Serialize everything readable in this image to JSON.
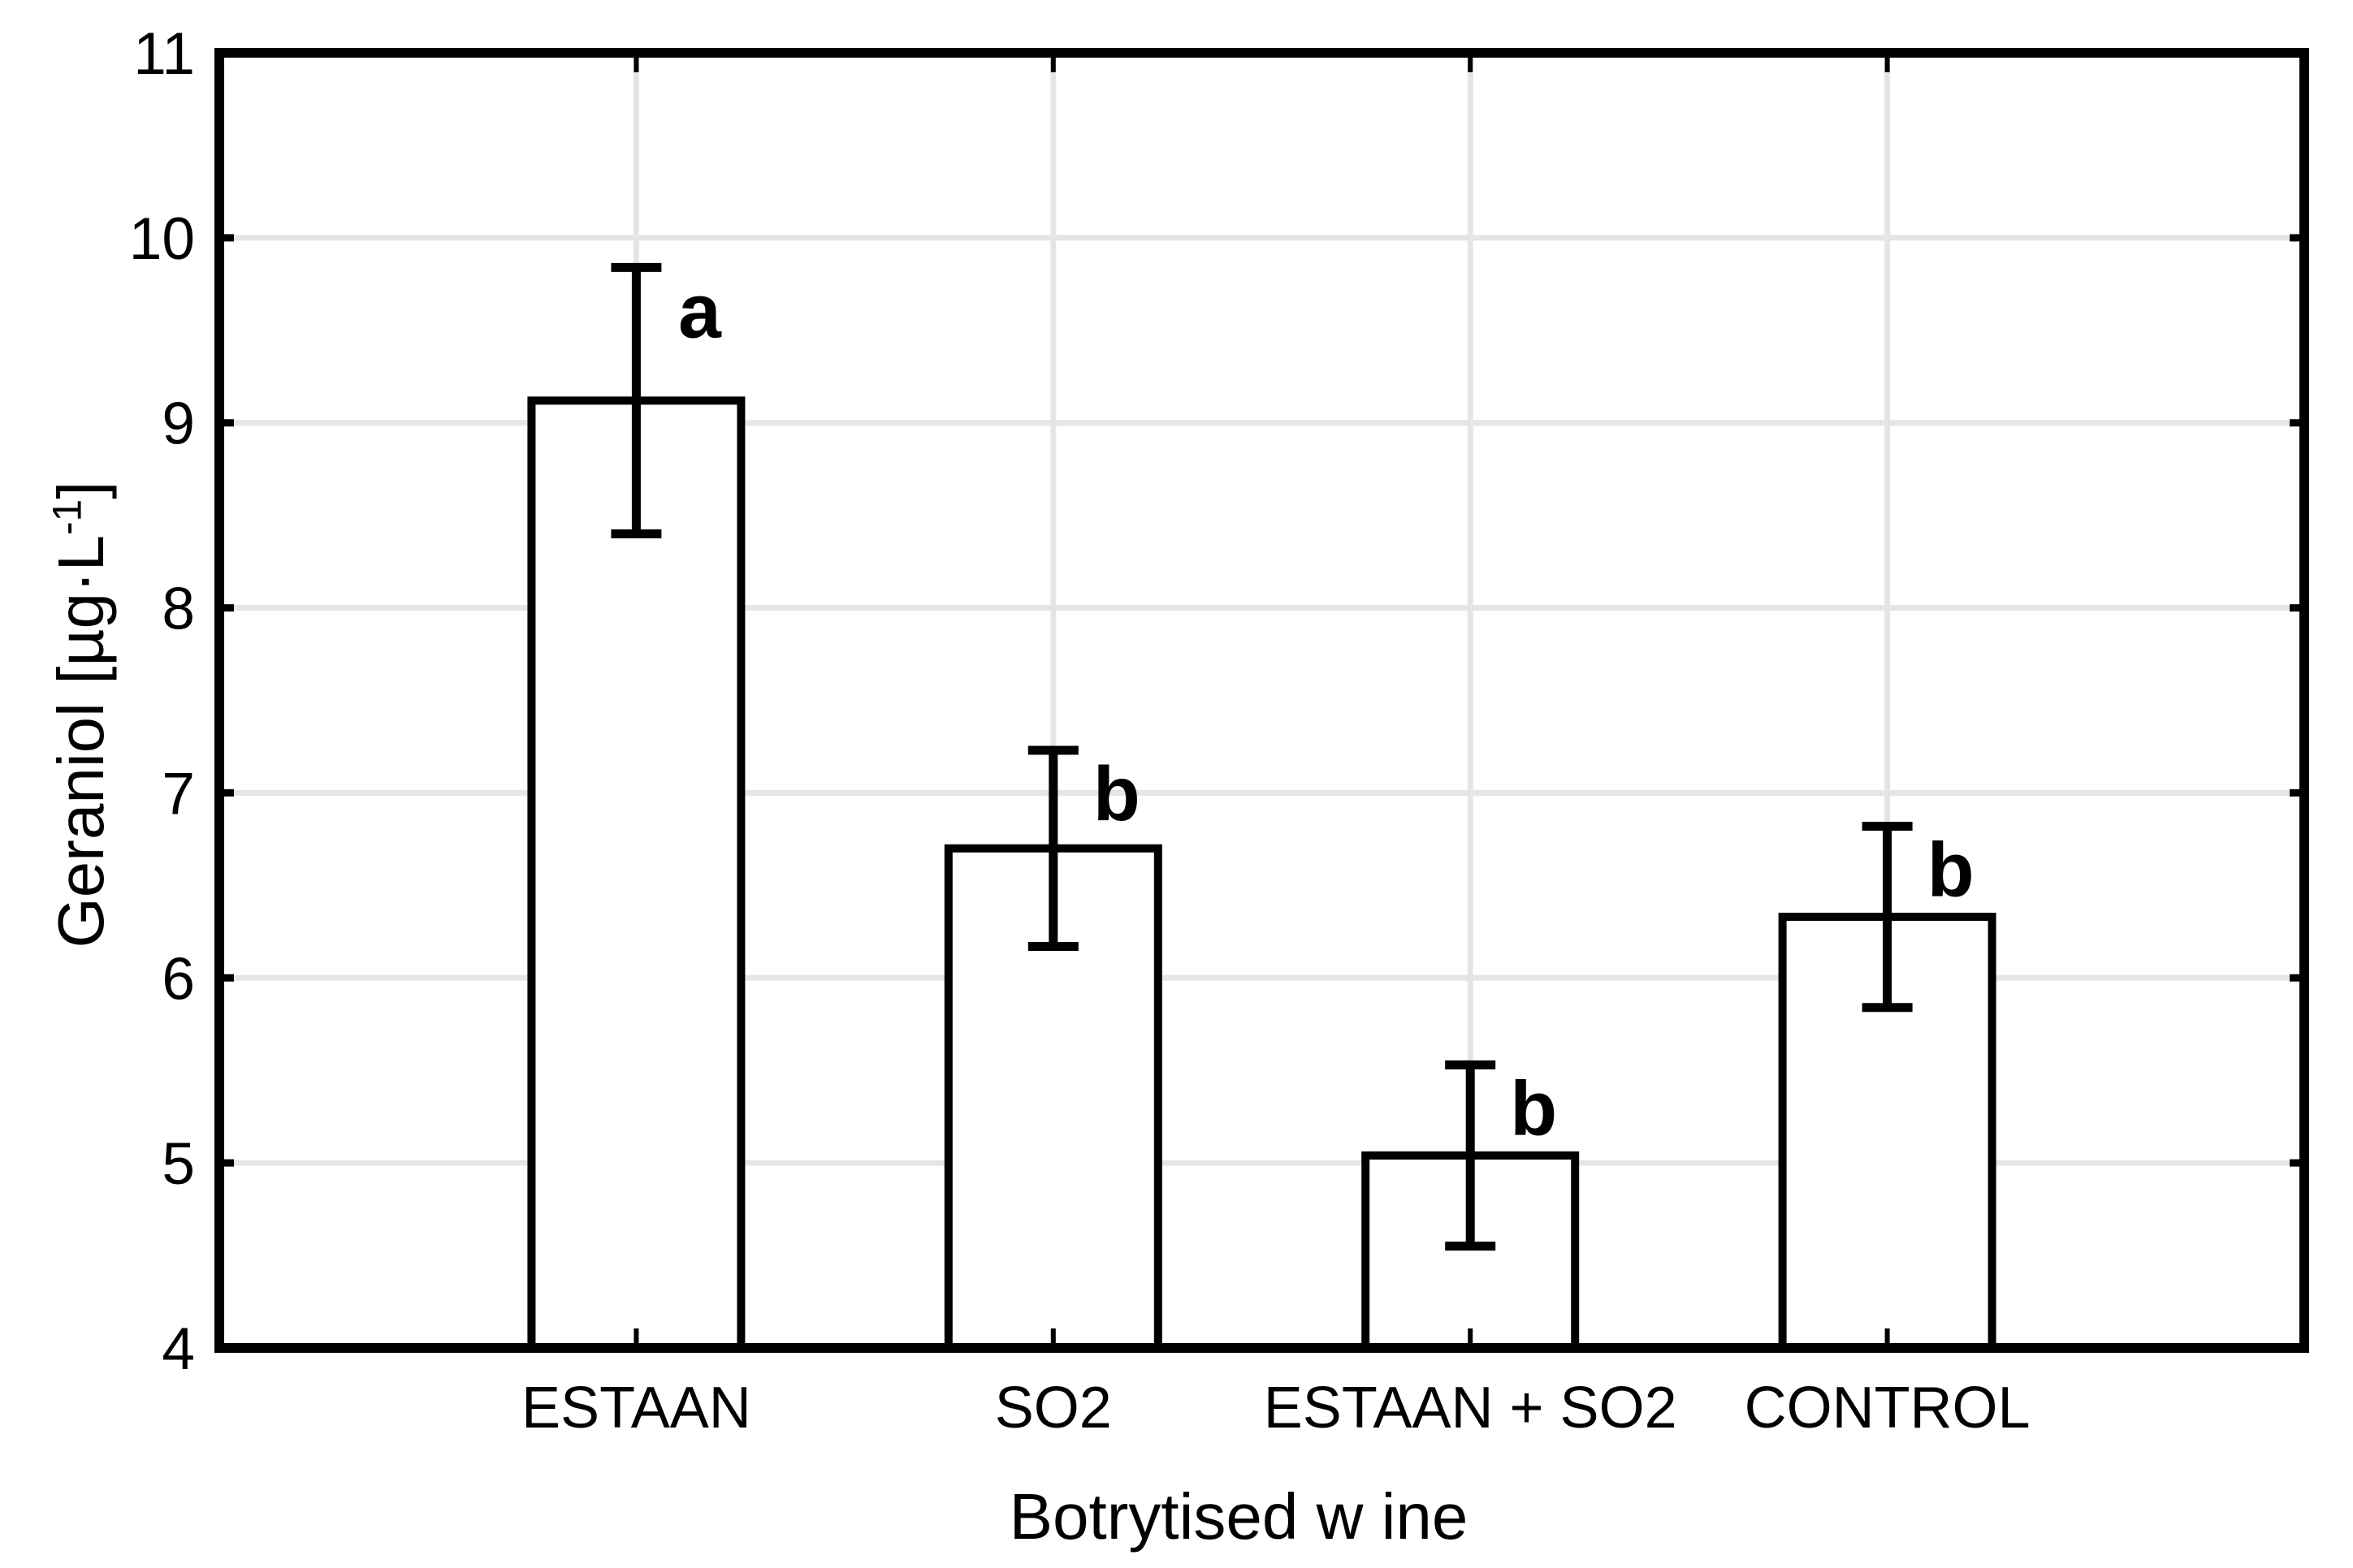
{
  "figure": {
    "background": "#ffffff",
    "ink_color": "#000000",
    "gridline_color": "#e5e5e5"
  },
  "chart_data": {
    "type": "bar",
    "title": "",
    "xlabel": "Botrytised w ine",
    "ylabel": "Geraniol [µg·L⁻¹]",
    "ylabel_parts": {
      "pre": "Geraniol [µg·L",
      "sup": "-1",
      "post": "]"
    },
    "categories": [
      "ESTAAN",
      "SO2",
      "ESTAAN + SO2",
      "CONTROL"
    ],
    "values": [
      9.12,
      6.7,
      5.04,
      6.33
    ],
    "error_low": [
      8.4,
      6.17,
      4.55,
      5.84
    ],
    "error_high": [
      9.84,
      7.23,
      5.53,
      6.82
    ],
    "significance_letters": [
      "a",
      "b",
      "b",
      "b"
    ],
    "ylim": [
      4,
      11
    ],
    "ytick_step": 1,
    "yticks": [
      4,
      5,
      6,
      7,
      8,
      9,
      10,
      11
    ],
    "grid": {
      "horizontal": true,
      "vertical": true
    },
    "bar_fill": "#ffffff",
    "bar_stroke": "#000000",
    "legend": "none"
  }
}
